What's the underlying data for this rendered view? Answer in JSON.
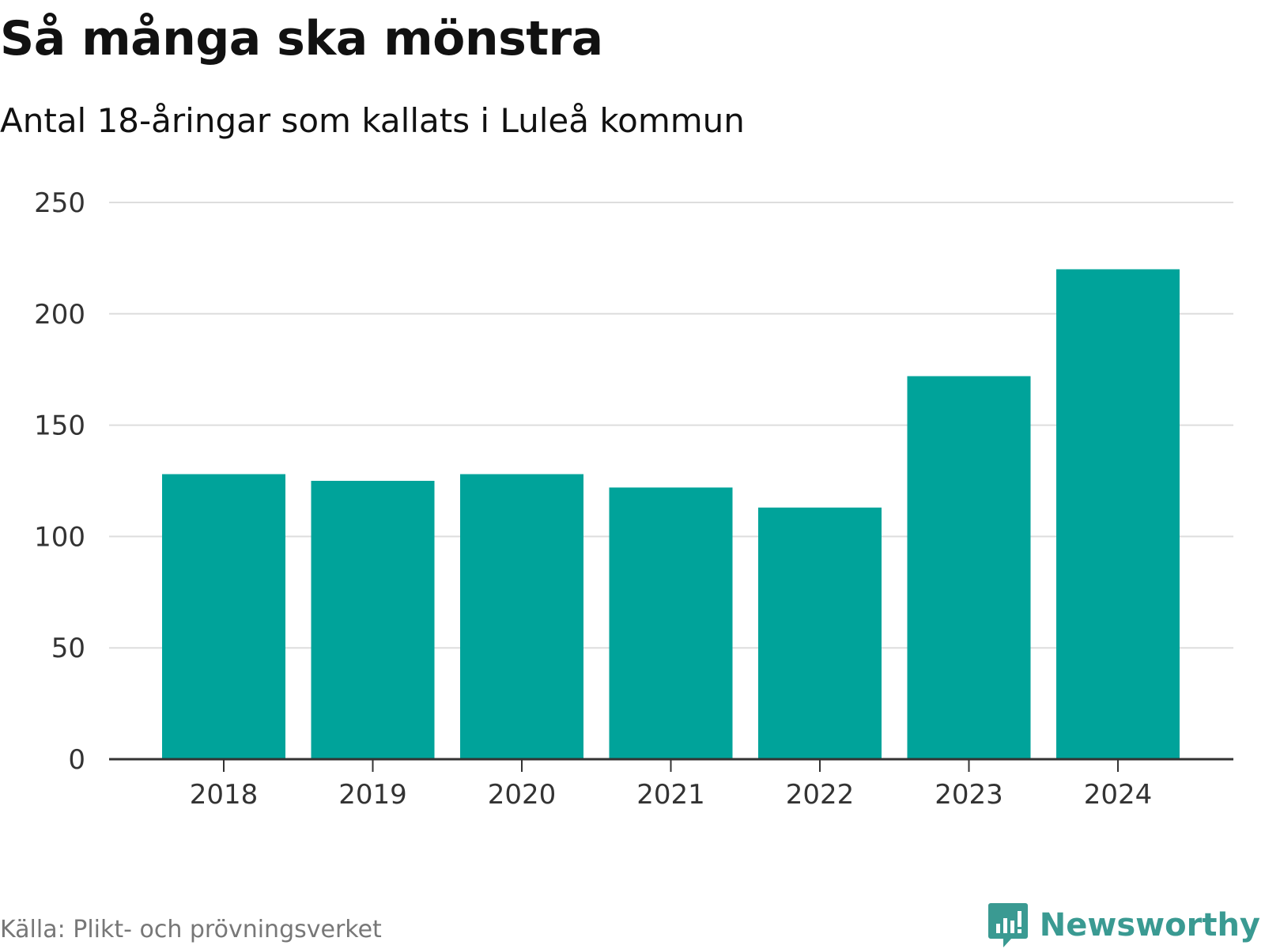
{
  "header": {
    "title": "Så många ska mönstra",
    "subtitle": "Antal 18-åringar som kallats i Luleå kommun"
  },
  "footer": {
    "source": "Källa: Plikt- och prövningsverket",
    "brand": "Newsworthy",
    "brand_icon": "newsworthy-logo-icon"
  },
  "colors": {
    "bar": "#00a39a",
    "grid": "#dddddd",
    "axis": "#333333",
    "brand": "#3a9a92"
  },
  "chart_data": {
    "type": "bar",
    "title": "Så många ska mönstra",
    "subtitle": "Antal 18-åringar som kallats i Luleå kommun",
    "categories": [
      "2018",
      "2019",
      "2020",
      "2021",
      "2022",
      "2023",
      "2024"
    ],
    "values": [
      128,
      125,
      128,
      122,
      113,
      172,
      220
    ],
    "xlabel": "",
    "ylabel": "",
    "ylim": [
      0,
      250
    ],
    "yticks": [
      0,
      50,
      100,
      150,
      200,
      250
    ],
    "grid": true,
    "legend": "none"
  }
}
